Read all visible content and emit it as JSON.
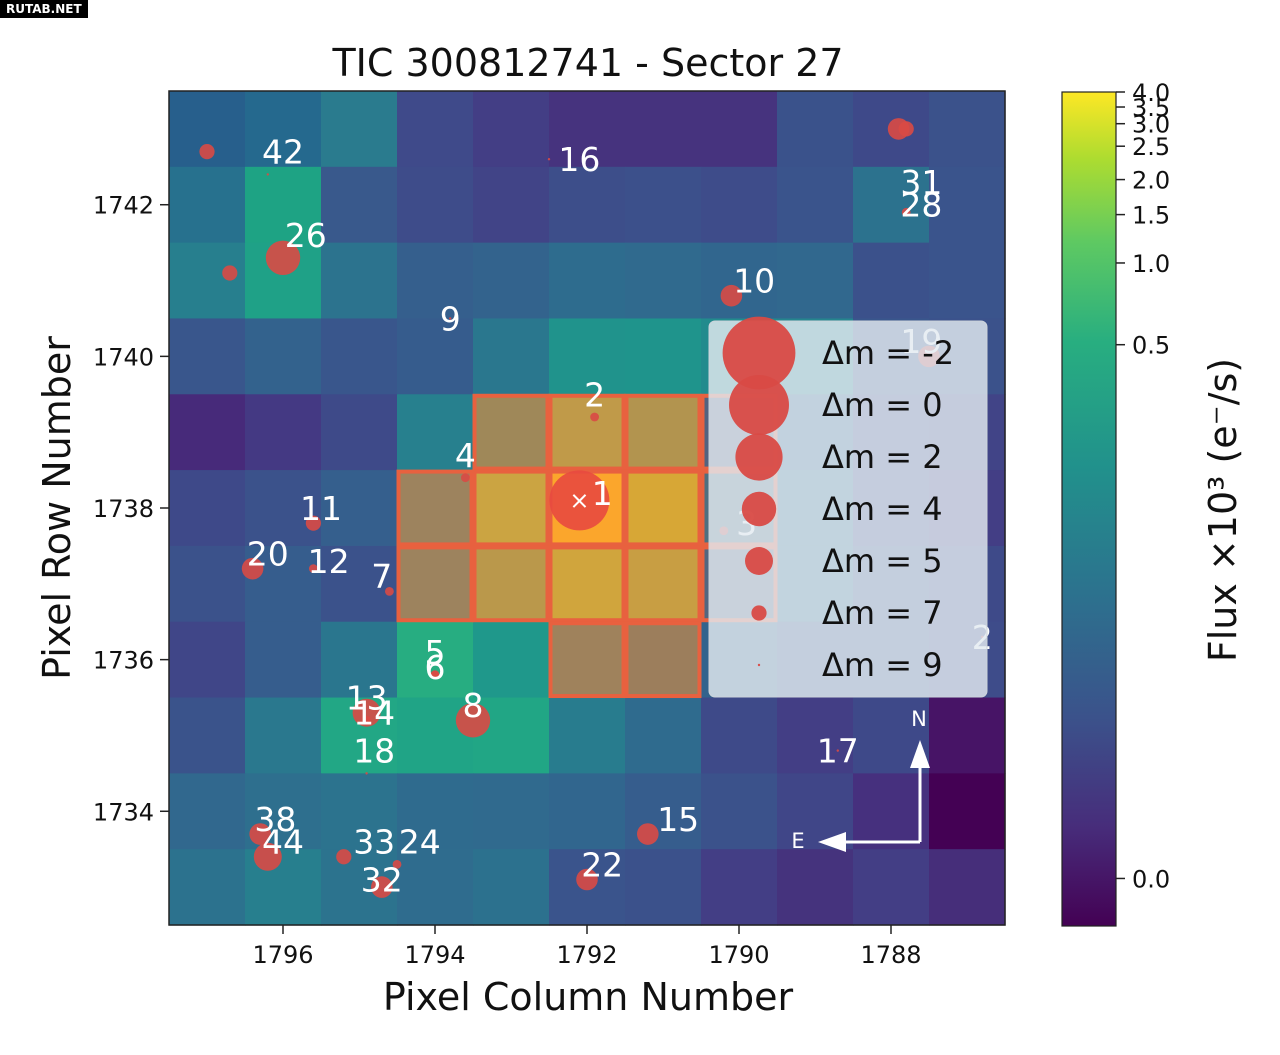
{
  "watermark": "RUTAB.NET",
  "chart_data": {
    "type": "heatmap",
    "title": "TIC 300812741 - Sector 27",
    "xlabel": "Pixel Column Number",
    "ylabel": "Pixel Row Number",
    "xlim": [
      1797.5,
      1786.5
    ],
    "ylim": [
      1732.5,
      1743.5
    ],
    "x_ticks": [
      "1796",
      "1794",
      "1792",
      "1790",
      "1788"
    ],
    "y_ticks": [
      "1742",
      "1740",
      "1738",
      "1736",
      "1734"
    ],
    "x_tick_values": [
      1796,
      1794,
      1792,
      1790,
      1788
    ],
    "y_tick_values": [
      1742,
      1740,
      1738,
      1736,
      1734
    ],
    "columns": [
      1797,
      1796,
      1795,
      1794,
      1793,
      1792,
      1791,
      1790,
      1789,
      1788,
      1787
    ],
    "rows": [
      1743,
      1742,
      1741,
      1740,
      1739,
      1738,
      1737,
      1736,
      1735,
      1734,
      1733
    ],
    "flux_colors": [
      [
        "#275f8c",
        "#25698e",
        "#2a7b8e",
        "#3f4a8a",
        "#433e85",
        "#46337e",
        "#46337e",
        "#46337e",
        "#3a528b",
        "#3e4989",
        "#3b528b"
      ],
      [
        "#27718e",
        "#1ea384",
        "#39598c",
        "#3e4c8a",
        "#414487",
        "#3d4e8a",
        "#3c508b",
        "#3e4c8a",
        "#3a548c",
        "#2c728e",
        "#3a548c"
      ],
      [
        "#277f8e",
        "#1fa187",
        "#2c738e",
        "#355f8d",
        "#33638d",
        "#2e6c8e",
        "#306a8e",
        "#31668e",
        "#31688e",
        "#3b518b",
        "#3a548c"
      ],
      [
        "#39568c",
        "#33628d",
        "#39568c",
        "#365c8d",
        "#2a778e",
        "#20938c",
        "#1f948c",
        "#228b8d",
        "#25858e",
        "#39568c",
        "#3b528b"
      ],
      [
        "#472a7a",
        "#443983",
        "#3e4a89",
        "#27808e",
        "#8f9260",
        "#b7a84c",
        "#a6a054",
        "#33638d",
        "#31668e",
        "#3e4c8a",
        "#414487"
      ],
      [
        "#3e4989",
        "#3b528b",
        "#355f8d",
        "#8d8c66",
        "#c5b444",
        "#ffb629",
        "#d4b835",
        "#2c738e",
        "#2e6e8e",
        "#3e4989",
        "#433e85"
      ],
      [
        "#3b528b",
        "#365d8d",
        "#3b528b",
        "#8d8c66",
        "#b0a54f",
        "#cbb53d",
        "#c1ad45",
        "#31688e",
        "#2d708e",
        "#39568c",
        "#3e4a89"
      ],
      [
        "#404688",
        "#365d8d",
        "#2a768e",
        "#27ad81",
        "#1f988b",
        "#8f8a63",
        "#8b8563",
        "#33638d",
        "#3b528b",
        "#3b528b",
        "#3e4c8a"
      ],
      [
        "#3a538b",
        "#2a788e",
        "#22a785",
        "#20a486",
        "#21a685",
        "#287c8e",
        "#2f6b8e",
        "#3e4a89",
        "#433e85",
        "#3e4989",
        "#471466"
      ],
      [
        "#31688e",
        "#2e6f8e",
        "#2c738e",
        "#2f6b8e",
        "#306a8e",
        "#31668e",
        "#365d8d",
        "#3b528b",
        "#404688",
        "#46307e",
        "#440154"
      ],
      [
        "#2c728e",
        "#277f8e",
        "#2c738e",
        "#2f6c8e",
        "#2c718e",
        "#3a548c",
        "#3b518b",
        "#433e85",
        "#45337d",
        "#433e85",
        "#462e7a"
      ]
    ],
    "aperture_pixels": [
      [
        1793,
        1739
      ],
      [
        1792,
        1739
      ],
      [
        1791,
        1739
      ],
      [
        1790,
        1739
      ],
      [
        1794,
        1738
      ],
      [
        1793,
        1738
      ],
      [
        1792,
        1738
      ],
      [
        1791,
        1738
      ],
      [
        1790,
        1738
      ],
      [
        1794,
        1737
      ],
      [
        1793,
        1737
      ],
      [
        1792,
        1737
      ],
      [
        1791,
        1737
      ],
      [
        1790,
        1737
      ],
      [
        1792,
        1736
      ],
      [
        1791,
        1736
      ]
    ],
    "target_marker": "×",
    "stars": [
      {
        "label": "1",
        "x": 1792.1,
        "y": 1738.1,
        "lx": 1791.8,
        "ly": 1738.2,
        "dm": 0
      },
      {
        "label": "2",
        "x": 1791.9,
        "y": 1739.2,
        "lx": 1791.9,
        "ly": 1739.5,
        "dm": 8
      },
      {
        "label": "3",
        "x": 1790.2,
        "y": 1737.7,
        "lx": 1789.9,
        "ly": 1737.8,
        "dm": 8
      },
      {
        "label": "4",
        "x": 1793.6,
        "y": 1738.4,
        "lx": 1793.6,
        "ly": 1738.7,
        "dm": 8
      },
      {
        "label": "5",
        "x": 1794.0,
        "y": 1735.8,
        "lx": 1794.0,
        "ly": 1736.1,
        "dm": 8
      },
      {
        "label": "6",
        "x": 1794.0,
        "y": 1735.8,
        "lx": 1794.0,
        "ly": 1735.9,
        "dm": 8
      },
      {
        "label": "7",
        "x": 1794.6,
        "y": 1736.9,
        "lx": 1794.7,
        "ly": 1737.1,
        "dm": 8
      },
      {
        "label": "8",
        "x": 1793.5,
        "y": 1735.2,
        "lx": 1793.5,
        "ly": 1735.4,
        "dm": 4
      },
      {
        "label": "9",
        "x": 1793.8,
        "y": 1740.5,
        "lx": 1793.8,
        "ly": 1740.5,
        "dm": 9
      },
      {
        "label": "10",
        "x": 1790.1,
        "y": 1740.8,
        "lx": 1789.8,
        "ly": 1741.0,
        "dm": 6
      },
      {
        "label": "11",
        "x": 1795.6,
        "y": 1737.8,
        "lx": 1795.5,
        "ly": 1738.0,
        "dm": 7
      },
      {
        "label": "12",
        "x": 1795.6,
        "y": 1737.2,
        "lx": 1795.4,
        "ly": 1737.3,
        "dm": 8
      },
      {
        "label": "13",
        "x": 1794.9,
        "y": 1735.3,
        "lx": 1794.9,
        "ly": 1735.5,
        "dm": 5
      },
      {
        "label": "14",
        "x": 1794.9,
        "y": 1735.2,
        "lx": 1794.8,
        "ly": 1735.3,
        "dm": 8
      },
      {
        "label": "15",
        "x": 1791.2,
        "y": 1733.7,
        "lx": 1790.8,
        "ly": 1733.9,
        "dm": 6
      },
      {
        "label": "16",
        "x": 1792.5,
        "y": 1742.6,
        "lx": 1792.1,
        "ly": 1742.6,
        "dm": 9
      },
      {
        "label": "17",
        "x": 1788.7,
        "y": 1734.8,
        "lx": 1788.7,
        "ly": 1734.8,
        "dm": 9
      },
      {
        "label": "18",
        "x": 1794.9,
        "y": 1734.5,
        "lx": 1794.8,
        "ly": 1734.8,
        "dm": 9
      },
      {
        "label": "19",
        "x": 1787.5,
        "y": 1740.0,
        "lx": 1787.6,
        "ly": 1740.2,
        "dm": 6
      },
      {
        "label": "20",
        "x": 1796.4,
        "y": 1737.2,
        "lx": 1796.2,
        "ly": 1737.4,
        "dm": 6
      },
      {
        "label": "22",
        "x": 1792.0,
        "y": 1733.1,
        "lx": 1791.8,
        "ly": 1733.3,
        "dm": 6
      },
      {
        "label": "24",
        "x": 1794.5,
        "y": 1733.3,
        "lx": 1794.2,
        "ly": 1733.6,
        "dm": 8
      },
      {
        "label": "26",
        "x": 1796.0,
        "y": 1741.3,
        "lx": 1795.7,
        "ly": 1741.6,
        "dm": 4
      },
      {
        "label": "28",
        "x": 1787.8,
        "y": 1741.9,
        "lx": 1787.6,
        "ly": 1742.0,
        "dm": 8
      },
      {
        "label": "31",
        "x": 1787.9,
        "y": 1743.0,
        "lx": 1787.6,
        "ly": 1742.3,
        "dm": 6
      },
      {
        "label": "32",
        "x": 1794.7,
        "y": 1733.0,
        "lx": 1794.7,
        "ly": 1733.1,
        "dm": 6
      },
      {
        "label": "33",
        "x": 1795.2,
        "y": 1733.4,
        "lx": 1794.8,
        "ly": 1733.6,
        "dm": 7
      },
      {
        "label": "38",
        "x": 1796.3,
        "y": 1733.7,
        "lx": 1796.1,
        "ly": 1733.9,
        "dm": 6
      },
      {
        "label": "42",
        "x": 1796.2,
        "y": 1742.4,
        "lx": 1796.0,
        "ly": 1742.7,
        "dm": 9
      },
      {
        "label": "44",
        "x": 1796.2,
        "y": 1733.4,
        "lx": 1796.0,
        "ly": 1733.6,
        "dm": 5
      },
      {
        "label": "2",
        "x": 1786.8,
        "y": 1736.3,
        "lx": 1786.8,
        "ly": 1736.3,
        "dm": 9
      },
      {
        "label": "",
        "x": 1797.0,
        "y": 1742.7,
        "lx": 0,
        "ly": 0,
        "dm": 7
      },
      {
        "label": "",
        "x": 1796.7,
        "y": 1741.1,
        "lx": 0,
        "ly": 0,
        "dm": 7
      },
      {
        "label": "",
        "x": 1787.8,
        "y": 1743.0,
        "lx": 0,
        "ly": 0,
        "dm": 7
      }
    ],
    "legend": {
      "placement": "right",
      "entries": [
        {
          "label": "Δm =  -2",
          "dm": -2
        },
        {
          "label": "Δm =   0",
          "dm": 0
        },
        {
          "label": "Δm =   2",
          "dm": 2
        },
        {
          "label": "Δm =   4",
          "dm": 4
        },
        {
          "label": "Δm =   5",
          "dm": 5
        },
        {
          "label": "Δm =   7",
          "dm": 7
        },
        {
          "label": "Δm =   9",
          "dm": 9
        }
      ]
    },
    "compass": {
      "north": "N",
      "east": "E"
    },
    "colorbar": {
      "label": "Flux ×10³ (e⁻/s)",
      "ticks": [
        {
          "label": "4.0",
          "f": 0.0
        },
        {
          "label": "3.5",
          "f": 0.018
        },
        {
          "label": "3.0",
          "f": 0.038
        },
        {
          "label": "2.5",
          "f": 0.065
        },
        {
          "label": "2.0",
          "f": 0.105
        },
        {
          "label": "1.5",
          "f": 0.147
        },
        {
          "label": "1.0",
          "f": 0.205
        },
        {
          "label": "0.5",
          "f": 0.303
        },
        {
          "label": "0.0",
          "f": 0.943
        }
      ]
    },
    "colors": {
      "aperture": "#e8613f",
      "star": "#d94a45",
      "target": "#e84a3f",
      "legend_bg": "#e3eaf0",
      "viridis_top": "#fde725",
      "viridis_bottom": "#440154"
    }
  }
}
